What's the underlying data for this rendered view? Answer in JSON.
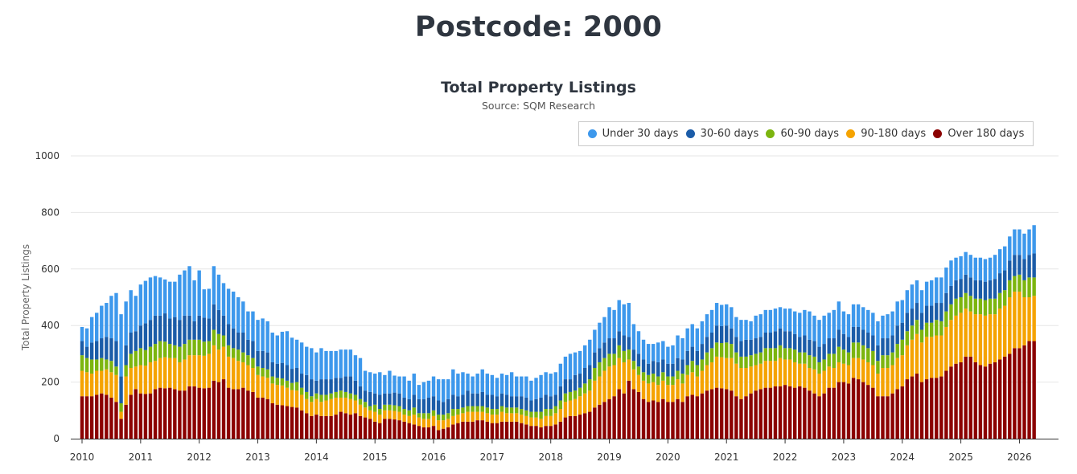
{
  "page": {
    "title": "Postcode: 2000"
  },
  "chart_data": {
    "type": "bar",
    "stacked": true,
    "title": "Total Property Listings",
    "subtitle": "Source: SQM Research",
    "ylabel": "Total Property Listings",
    "xlabel": "",
    "ylim": [
      0,
      1000
    ],
    "yticks": [
      0,
      200,
      400,
      600,
      800,
      1000
    ],
    "xtick_labels": [
      "2010",
      "2011",
      "2012",
      "2013",
      "2014",
      "2015",
      "2016",
      "2017",
      "2018",
      "2019",
      "2020",
      "2021",
      "2022",
      "2023",
      "2024",
      "2025",
      "2026"
    ],
    "grid": "horizontal",
    "legend_position": "top-right",
    "legend_order": [
      "Under 30 days",
      "30-60 days",
      "60-90 days",
      "90-180 days",
      "Over 180 days"
    ],
    "start_month": "2010-01",
    "frequency": "monthly",
    "series": [
      {
        "name": "Over 180 days",
        "color": "#8b0000",
        "values": [
          150,
          150,
          150,
          155,
          160,
          155,
          145,
          130,
          70,
          120,
          155,
          175,
          160,
          158,
          160,
          175,
          180,
          178,
          180,
          175,
          170,
          170,
          185,
          185,
          180,
          178,
          180,
          205,
          200,
          210,
          180,
          175,
          175,
          180,
          170,
          165,
          145,
          145,
          140,
          125,
          120,
          118,
          115,
          112,
          110,
          100,
          90,
          80,
          85,
          80,
          80,
          80,
          85,
          95,
          90,
          85,
          90,
          80,
          75,
          70,
          60,
          55,
          70,
          70,
          68,
          65,
          60,
          55,
          50,
          45,
          40,
          40,
          45,
          30,
          35,
          40,
          50,
          55,
          60,
          60,
          60,
          65,
          65,
          60,
          55,
          55,
          60,
          60,
          60,
          60,
          55,
          50,
          45,
          45,
          40,
          45,
          45,
          50,
          60,
          75,
          80,
          80,
          85,
          90,
          95,
          110,
          120,
          130,
          140,
          150,
          175,
          160,
          205,
          175,
          165,
          140,
          130,
          135,
          130,
          140,
          130,
          130,
          140,
          130,
          150,
          155,
          150,
          160,
          170,
          175,
          180,
          178,
          175,
          170,
          150,
          140,
          150,
          160,
          170,
          175,
          180,
          180,
          185,
          185,
          190,
          185,
          180,
          185,
          180,
          170,
          160,
          150,
          160,
          180,
          180,
          200,
          200,
          195,
          215,
          210,
          200,
          190,
          180,
          150,
          150,
          150,
          160,
          175,
          185,
          210,
          220,
          230,
          200,
          210,
          215,
          215,
          220,
          240,
          255,
          265,
          270,
          290,
          290,
          270,
          260,
          255,
          265,
          270,
          280,
          290,
          300,
          320,
          320,
          330,
          345,
          345
        ]
      },
      {
        "name": "90-180 days",
        "color": "#f5a300",
        "values": [
          90,
          85,
          80,
          85,
          80,
          90,
          90,
          95,
          25,
          100,
          95,
          80,
          100,
          100,
          110,
          100,
          105,
          110,
          105,
          110,
          100,
          110,
          110,
          110,
          115,
          115,
          120,
          125,
          115,
          115,
          110,
          110,
          100,
          90,
          90,
          85,
          80,
          75,
          75,
          70,
          70,
          70,
          65,
          60,
          60,
          55,
          50,
          50,
          55,
          50,
          55,
          60,
          60,
          50,
          55,
          55,
          45,
          40,
          35,
          30,
          35,
          30,
          30,
          30,
          30,
          30,
          25,
          25,
          35,
          30,
          30,
          30,
          35,
          35,
          30,
          30,
          30,
          30,
          30,
          35,
          35,
          30,
          30,
          30,
          30,
          30,
          35,
          30,
          30,
          30,
          30,
          30,
          30,
          30,
          30,
          35,
          35,
          40,
          45,
          55,
          55,
          60,
          65,
          70,
          75,
          95,
          100,
          110,
          115,
          110,
          110,
          110,
          75,
          70,
          60,
          65,
          65,
          65,
          60,
          65,
          60,
          60,
          70,
          65,
          75,
          80,
          70,
          80,
          90,
          95,
          110,
          110,
          110,
          115,
          115,
          110,
          100,
          95,
          90,
          90,
          95,
          95,
          90,
          100,
          90,
          95,
          90,
          80,
          85,
          80,
          85,
          80,
          80,
          75,
          70,
          70,
          65,
          65,
          70,
          75,
          80,
          80,
          80,
          80,
          100,
          100,
          100,
          110,
          110,
          120,
          130,
          140,
          140,
          150,
          145,
          150,
          145,
          155,
          165,
          170,
          175,
          170,
          160,
          170,
          180,
          180,
          175,
          170,
          180,
          180,
          200,
          200,
          200,
          170,
          155,
          160
        ]
      },
      {
        "name": "60-90 days",
        "color": "#7cb50f",
        "values": [
          55,
          50,
          50,
          40,
          45,
          35,
          40,
          30,
          30,
          40,
          50,
          55,
          60,
          55,
          55,
          60,
          60,
          55,
          50,
          45,
          55,
          55,
          55,
          55,
          55,
          50,
          45,
          55,
          55,
          40,
          40,
          35,
          40,
          35,
          35,
          35,
          30,
          30,
          30,
          25,
          25,
          25,
          25,
          25,
          30,
          25,
          25,
          20,
          20,
          25,
          20,
          20,
          20,
          25,
          20,
          20,
          20,
          20,
          20,
          15,
          25,
          20,
          20,
          20,
          20,
          20,
          20,
          20,
          25,
          15,
          20,
          20,
          20,
          20,
          20,
          20,
          25,
          20,
          20,
          20,
          20,
          20,
          20,
          20,
          20,
          20,
          20,
          20,
          20,
          20,
          20,
          20,
          20,
          20,
          25,
          25,
          25,
          25,
          30,
          30,
          30,
          30,
          30,
          35,
          40,
          45,
          50,
          45,
          45,
          40,
          45,
          40,
          35,
          30,
          30,
          30,
          30,
          30,
          30,
          30,
          30,
          30,
          30,
          35,
          35,
          40,
          40,
          40,
          45,
          50,
          50,
          50,
          55,
          50,
          40,
          40,
          40,
          40,
          40,
          40,
          45,
          45,
          45,
          45,
          40,
          40,
          45,
          40,
          40,
          45,
          45,
          40,
          40,
          45,
          50,
          55,
          50,
          45,
          55,
          55,
          50,
          50,
          50,
          45,
          45,
          45,
          45,
          50,
          55,
          50,
          50,
          50,
          45,
          50,
          50,
          55,
          50,
          55,
          55,
          60,
          55,
          55,
          55,
          55,
          55,
          55,
          55,
          55,
          55,
          55,
          60,
          55,
          60,
          60,
          70,
          65
        ]
      },
      {
        "name": "30-60 days",
        "color": "#1b5ca8",
        "values": [
          50,
          40,
          60,
          65,
          70,
          80,
          80,
          90,
          95,
          70,
          75,
          70,
          80,
          95,
          95,
          100,
          90,
          100,
          90,
          100,
          95,
          100,
          85,
          65,
          85,
          85,
          80,
          90,
          85,
          70,
          75,
          70,
          60,
          70,
          55,
          60,
          55,
          60,
          60,
          50,
          50,
          55,
          55,
          50,
          50,
          50,
          60,
          60,
          45,
          55,
          55,
          50,
          50,
          45,
          55,
          60,
          50,
          45,
          40,
          50,
          40,
          50,
          40,
          40,
          45,
          45,
          40,
          40,
          45,
          50,
          50,
          55,
          50,
          50,
          45,
          50,
          50,
          45,
          45,
          55,
          45,
          45,
          50,
          45,
          50,
          45,
          45,
          45,
          40,
          40,
          45,
          45,
          40,
          45,
          50,
          50,
          45,
          40,
          50,
          50,
          45,
          55,
          50,
          55,
          50,
          55,
          50,
          55,
          55,
          55,
          50,
          55,
          45,
          40,
          45,
          45,
          40,
          45,
          50,
          45,
          45,
          45,
          45,
          50,
          50,
          50,
          50,
          55,
          55,
          55,
          60,
          60,
          60,
          55,
          55,
          55,
          60,
          55,
          55,
          55,
          55,
          55,
          60,
          60,
          60,
          60,
          55,
          55,
          60,
          55,
          55,
          55,
          55,
          55,
          55,
          60,
          55,
          55,
          55,
          55,
          55,
          55,
          55,
          55,
          60,
          60,
          60,
          65,
          60,
          65,
          60,
          60,
          60,
          60,
          60,
          60,
          65,
          65,
          65,
          65,
          65,
          65,
          65,
          65,
          65,
          65,
          65,
          70,
          70,
          70,
          70,
          75,
          70,
          75,
          80,
          85
        ]
      },
      {
        "name": "Under 30 days",
        "color": "#3d98ec",
        "values": [
          50,
          65,
          90,
          100,
          115,
          120,
          150,
          170,
          220,
          155,
          150,
          125,
          145,
          150,
          150,
          140,
          135,
          120,
          130,
          125,
          160,
          160,
          175,
          145,
          160,
          100,
          105,
          135,
          125,
          115,
          125,
          130,
          125,
          110,
          100,
          105,
          110,
          115,
          110,
          105,
          100,
          110,
          120,
          110,
          100,
          110,
          100,
          110,
          100,
          110,
          100,
          100,
          95,
          100,
          95,
          95,
          90,
          100,
          70,
          70,
          70,
          80,
          65,
          80,
          60,
          60,
          75,
          65,
          75,
          50,
          60,
          60,
          70,
          75,
          80,
          70,
          90,
          80,
          80,
          60,
          60,
          70,
          80,
          75,
          70,
          65,
          70,
          70,
          85,
          70,
          70,
          75,
          70,
          75,
          80,
          80,
          80,
          80,
          80,
          80,
          90,
          80,
          80,
          80,
          90,
          80,
          90,
          90,
          110,
          100,
          110,
          110,
          120,
          90,
          80,
          70,
          70,
          60,
          70,
          65,
          60,
          65,
          80,
          75,
          80,
          80,
          80,
          80,
          80,
          80,
          80,
          75,
          75,
          75,
          70,
          75,
          70,
          65,
          80,
          80,
          80,
          80,
          80,
          75,
          80,
          80,
          80,
          85,
          90,
          100,
          90,
          95,
          100,
          90,
          100,
          100,
          80,
          80,
          80,
          80,
          80,
          80,
          80,
          85,
          80,
          85,
          85,
          85,
          80,
          80,
          85,
          80,
          80,
          85,
          90,
          90,
          90,
          90,
          90,
          80,
          80,
          80,
          80,
          80,
          80,
          80,
          80,
          85,
          85,
          85,
          85,
          90,
          90,
          90,
          90,
          100
        ]
      }
    ]
  }
}
